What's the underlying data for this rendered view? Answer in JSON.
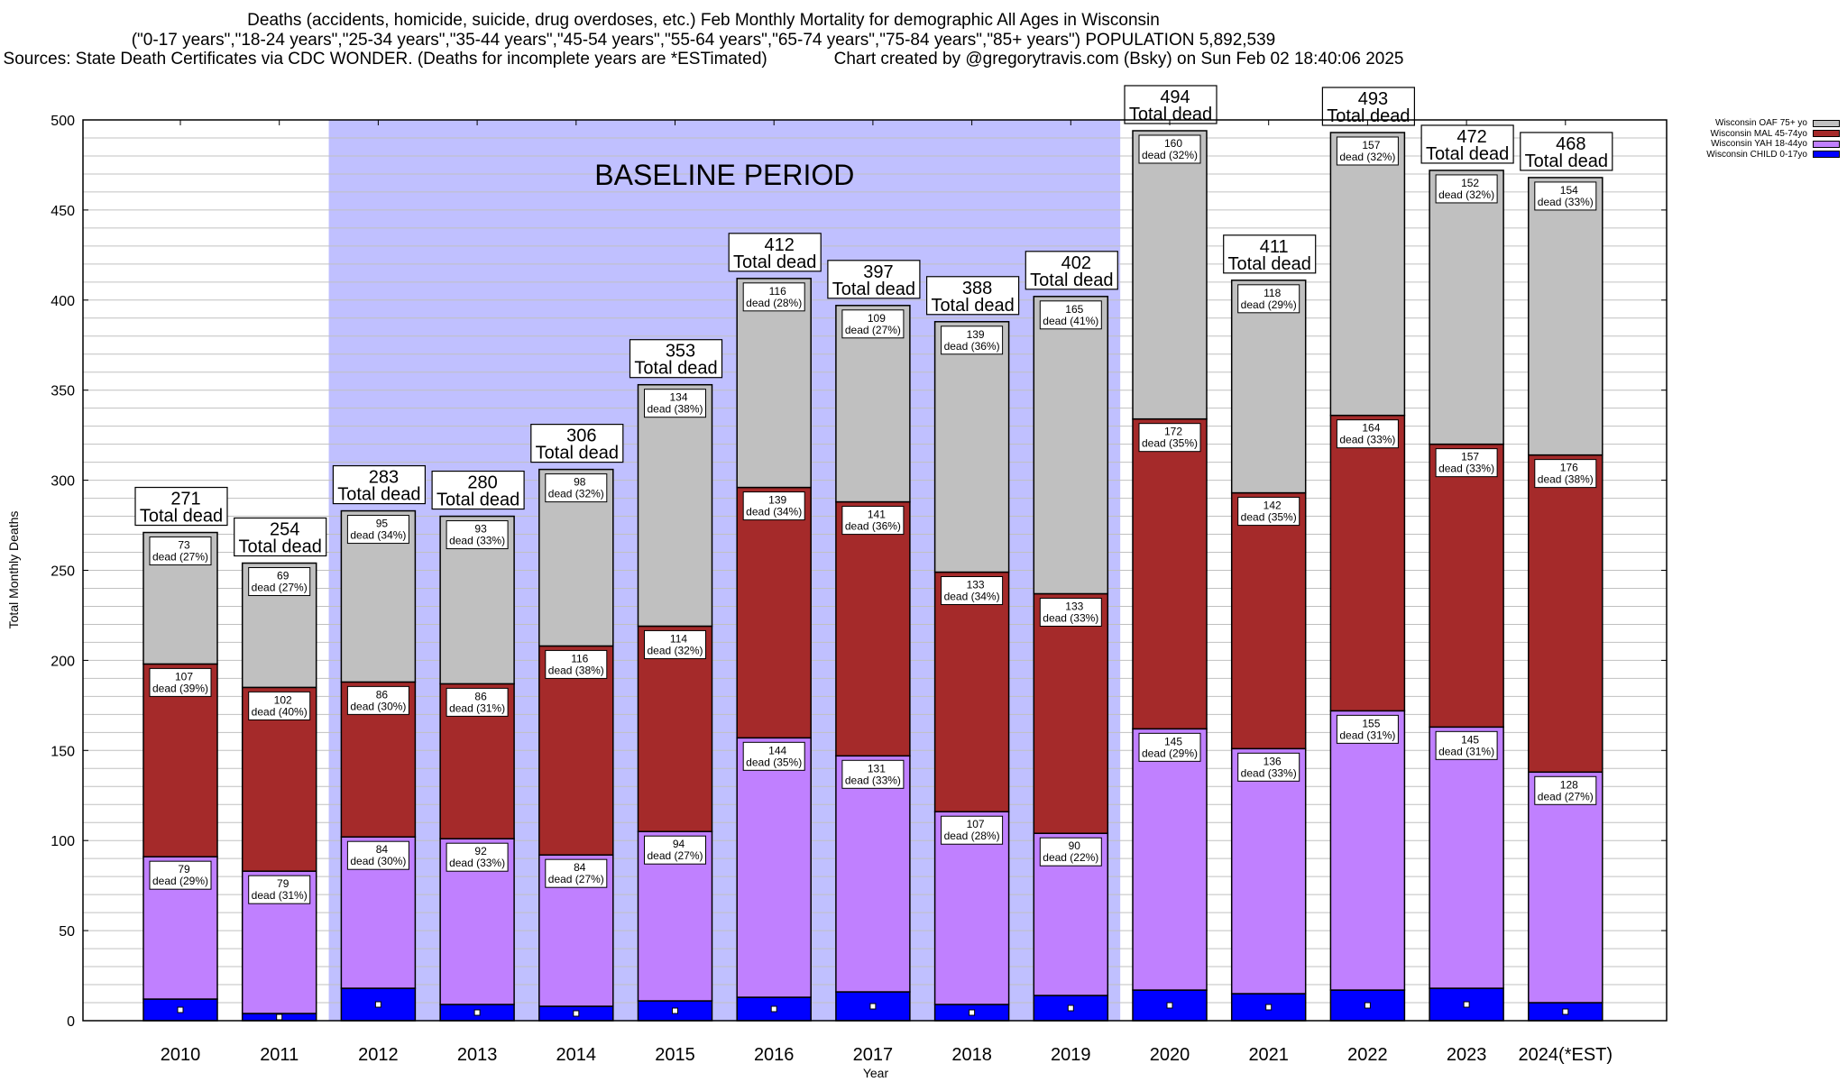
{
  "title": {
    "line1": "Deaths (accidents, homicide, suicide, drug overdoses, etc.) Feb Monthly Mortality for demographic All Ages in Wisconsin",
    "line2": "(\"0-17 years\",\"18-24 years\",\"25-34 years\",\"35-44 years\",\"45-54 years\",\"55-64 years\",\"65-74 years\",\"75-84 years\",\"85+ years\") POPULATION 5,892,539",
    "line3": "Sources: State Death Certificates via CDC WONDER. (Deaths for incomplete years are *ESTimated)              Chart created by @gregorytravis.com (Bsky) on Sun Feb 02 18:40:06 2025"
  },
  "colors": {
    "oaf": "#c0c0c0",
    "mal": "#a52a2a",
    "yah": "#c080ff",
    "child": "#0000ff",
    "baseline_shade": "#c0c0ff",
    "grid": "#c0c0c0"
  },
  "chart_data": {
    "type": "bar",
    "stacked": true,
    "title": "Deaths (accidents, homicide, suicide, drug overdoses, etc.) Feb Monthly Mortality for demographic All Ages in Wisconsin",
    "xlabel": "Year",
    "ylabel": "Total Monthly Deaths",
    "ylim": [
      0,
      500
    ],
    "yticks": [
      0,
      50,
      100,
      150,
      200,
      250,
      300,
      350,
      400,
      450,
      500
    ],
    "minor_grid_step": 10,
    "grid": true,
    "legend_position": "top-right (outside plot)",
    "categories": [
      "2010",
      "2011",
      "2012",
      "2013",
      "2014",
      "2015",
      "2016",
      "2017",
      "2018",
      "2019",
      "2020",
      "2021",
      "2022",
      "2023",
      "2024(*EST)"
    ],
    "totals": [
      271,
      254,
      283,
      280,
      306,
      353,
      412,
      397,
      388,
      402,
      494,
      411,
      493,
      472,
      468
    ],
    "total_label_suffix": "Total dead",
    "segment_label_word": "dead",
    "series": [
      {
        "key": "child",
        "name": "Wisconsin CHILD 0-17yo",
        "values": [
          12,
          4,
          18,
          9,
          8,
          11,
          13,
          16,
          9,
          14,
          17,
          15,
          17,
          18,
          10
        ],
        "labeled": false
      },
      {
        "key": "yah",
        "name": "Wisconsin YAH 18-44yo",
        "values": [
          79,
          79,
          84,
          92,
          84,
          94,
          144,
          131,
          107,
          90,
          145,
          136,
          155,
          145,
          128
        ],
        "percents": [
          29,
          31,
          30,
          33,
          27,
          27,
          35,
          33,
          28,
          22,
          29,
          33,
          31,
          31,
          27
        ],
        "labeled": true
      },
      {
        "key": "mal",
        "name": "Wisconsin MAL 45-74yo",
        "values": [
          107,
          102,
          86,
          86,
          116,
          114,
          139,
          141,
          133,
          133,
          172,
          142,
          164,
          157,
          176
        ],
        "percents": [
          39,
          40,
          30,
          31,
          38,
          32,
          34,
          36,
          34,
          33,
          35,
          35,
          33,
          33,
          38
        ],
        "labeled": true
      },
      {
        "key": "oaf",
        "name": "Wisconsin OAF 75+ yo",
        "values": [
          73,
          69,
          95,
          93,
          98,
          134,
          116,
          109,
          139,
          165,
          160,
          118,
          157,
          152,
          154
        ],
        "percents": [
          27,
          27,
          34,
          33,
          32,
          38,
          28,
          27,
          36,
          41,
          32,
          29,
          32,
          32,
          33
        ],
        "labeled": true
      }
    ],
    "legend_order": [
      "oaf",
      "mal",
      "yah",
      "child"
    ],
    "annotations": [
      {
        "text": "BASELINE PERIOD",
        "span": [
          "2012",
          "2019"
        ]
      }
    ]
  }
}
